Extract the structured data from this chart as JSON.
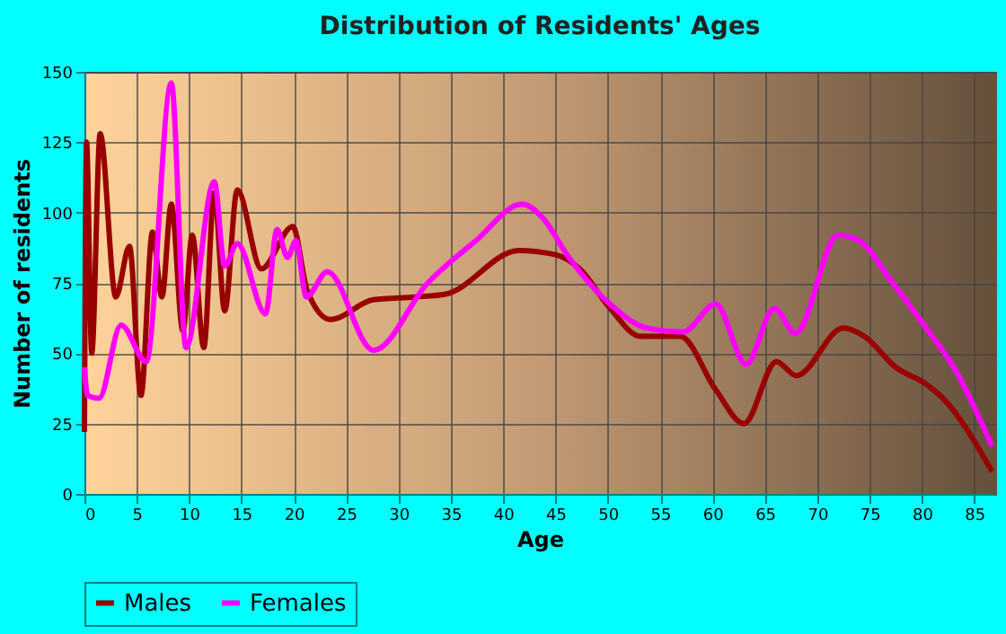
{
  "chart_data": {
    "type": "line",
    "title": "Distribution of Residents' Ages",
    "xlabel": "Age",
    "ylabel": "Number of residents",
    "xlim": [
      0,
      87
    ],
    "xticks": [
      0,
      5,
      10,
      15,
      20,
      25,
      30,
      35,
      40,
      45,
      50,
      55,
      60,
      65,
      70,
      75,
      80,
      85
    ],
    "ylim": [
      0,
      150
    ],
    "yticks": [
      0,
      25,
      50,
      75,
      100,
      125,
      150
    ],
    "grid": true,
    "legend": "bottom",
    "series": [
      {
        "name": "Males",
        "color": "#990000",
        "x": [
          0,
          0.2,
          0.7,
          1.5,
          3,
          4.3,
          5.4,
          6.5,
          7.4,
          8.3,
          9.4,
          10.3,
          11.4,
          12.4,
          13.4,
          14.6,
          16.9,
          19.9,
          21.3,
          23.5,
          27.6,
          31.6,
          34.5,
          41.5,
          45,
          47.3,
          50.2,
          53.1,
          56.9,
          60.3,
          63,
          66.1,
          68,
          72.5,
          74.5,
          77.5,
          80.4,
          82,
          86.7
        ],
        "values": [
          22,
          125,
          50,
          128,
          70,
          88,
          35,
          93,
          70,
          103,
          58,
          92,
          52,
          107,
          65,
          108,
          80,
          95,
          72,
          62,
          69,
          70,
          71,
          86.5,
          85,
          80,
          66,
          56,
          56,
          37,
          25,
          47,
          42,
          59,
          56,
          45,
          39,
          34,
          8
        ]
      },
      {
        "name": "Females",
        "color": "#ff00ff",
        "x": [
          0,
          0.3,
          1.4,
          3.5,
          5.9,
          8.3,
          9.7,
          12.4,
          13.4,
          14.6,
          17.3,
          18.4,
          19.4,
          20.2,
          21.2,
          23.2,
          27.6,
          32.8,
          37.4,
          41.8,
          43.8,
          46.1,
          50.2,
          53.7,
          57.2,
          60.3,
          63.2,
          65.9,
          67.9,
          72,
          74,
          77,
          80.2,
          83.2,
          86.7
        ],
        "values": [
          45,
          35,
          34,
          60,
          47,
          146,
          52,
          111,
          81,
          89,
          64,
          94,
          84,
          90,
          70,
          79,
          51,
          75,
          90,
          103,
          98,
          85,
          67.5,
          59,
          57.6,
          67.5,
          46,
          66,
          57,
          92,
          90,
          76,
          60,
          44,
          17
        ]
      }
    ]
  }
}
